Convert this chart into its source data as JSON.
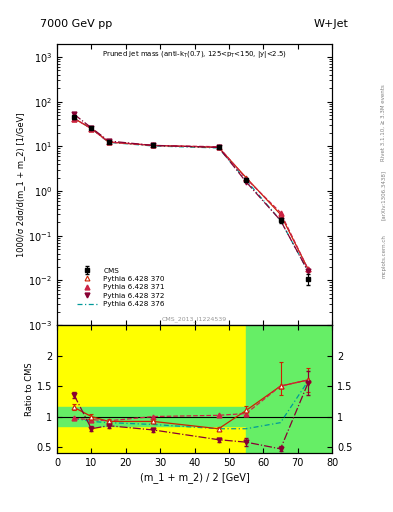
{
  "title_left": "7000 GeV pp",
  "title_right": "W+Jet",
  "plot_title": "Pruned jet mass (anti-k_{T}(0.7), 125<p_{T}<150, |y|<2.5)",
  "ylabel_main": "1000/σ 2dσ/d(m_1 + m_2) [1/GeV]",
  "ylabel_ratio": "Ratio to CMS",
  "xlabel": "(m_1 + m_2) / 2 [GeV]",
  "right_label": "Rivet 3.1.10, ≥ 3.3M events",
  "arxiv_label": "[arXiv:1306.3438]",
  "mcplots_label": "mcplots.cern.ch",
  "watermark": "CMS_2013_I1224539",
  "cms_x": [
    5,
    10,
    15,
    28,
    47,
    55,
    65,
    73
  ],
  "cms_y": [
    45,
    26,
    12.5,
    10.5,
    9.5,
    1.8,
    0.22,
    0.011
  ],
  "cms_yerr_lo": [
    3,
    1.5,
    0.8,
    0.7,
    0.5,
    0.15,
    0.025,
    0.003
  ],
  "cms_yerr_hi": [
    3,
    1.5,
    0.8,
    0.7,
    0.5,
    0.15,
    0.025,
    0.003
  ],
  "p370_x": [
    5,
    10,
    15,
    28,
    47,
    55,
    65,
    73
  ],
  "p370_y": [
    42,
    25,
    12.5,
    10.5,
    9.5,
    2.0,
    0.3,
    0.018
  ],
  "p371_x": [
    5,
    10,
    15,
    28,
    47,
    55,
    65,
    73
  ],
  "p371_y": [
    42,
    25,
    12.5,
    10.5,
    9.8,
    1.9,
    0.33,
    0.018
  ],
  "p372_x": [
    5,
    10,
    15,
    28,
    47,
    55,
    65,
    73
  ],
  "p372_y": [
    52,
    26,
    13.2,
    10.5,
    9.5,
    1.6,
    0.22,
    0.016
  ],
  "p376_x": [
    5,
    10,
    15,
    28,
    47,
    55,
    65,
    73
  ],
  "p376_y": [
    42,
    25,
    12.3,
    10.2,
    9.2,
    1.75,
    0.22,
    0.016
  ],
  "ratio_p370_x": [
    5,
    10,
    15,
    28,
    47,
    55,
    65,
    73
  ],
  "ratio_p370_y": [
    1.15,
    1.0,
    0.92,
    0.92,
    0.8,
    1.1,
    1.5,
    1.6
  ],
  "ratio_p370_yerr_lo": [
    0.05,
    0.04,
    0.04,
    0.03,
    0.03,
    0.08,
    0.15,
    0.2
  ],
  "ratio_p370_yerr_hi": [
    0.05,
    0.04,
    0.04,
    0.03,
    0.03,
    0.08,
    0.4,
    0.2
  ],
  "ratio_p371_x": [
    5,
    10,
    15,
    28,
    47,
    55,
    65,
    73
  ],
  "ratio_p371_y": [
    0.97,
    0.95,
    0.93,
    1.0,
    1.02,
    1.05,
    1.5,
    1.6
  ],
  "ratio_p372_x": [
    5,
    10,
    15,
    28,
    47,
    55,
    65,
    73
  ],
  "ratio_p372_y": [
    1.35,
    0.8,
    0.85,
    0.78,
    0.62,
    0.58,
    0.47,
    1.55
  ],
  "ratio_p372_yerr_lo": [
    0.05,
    0.04,
    0.04,
    0.03,
    0.03,
    0.06,
    0.04,
    0.2
  ],
  "ratio_p372_yerr_hi": [
    0.05,
    0.04,
    0.04,
    0.03,
    0.03,
    0.06,
    0.04,
    0.2
  ],
  "ratio_p376_x": [
    5,
    10,
    15,
    28,
    47,
    55,
    65,
    73
  ],
  "ratio_p376_y": [
    0.97,
    0.92,
    0.9,
    0.87,
    0.8,
    0.8,
    0.9,
    1.58
  ],
  "ylim_main": [
    0.001,
    2000
  ],
  "ylim_ratio": [
    0.4,
    2.5
  ],
  "xlim": [
    0,
    80
  ],
  "color_cms": "#000000",
  "color_p370": "#cc2200",
  "color_p371": "#cc2244",
  "color_p372": "#880033",
  "color_p376": "#009999",
  "color_yellow": "#ffff00",
  "color_green": "#66ee66"
}
